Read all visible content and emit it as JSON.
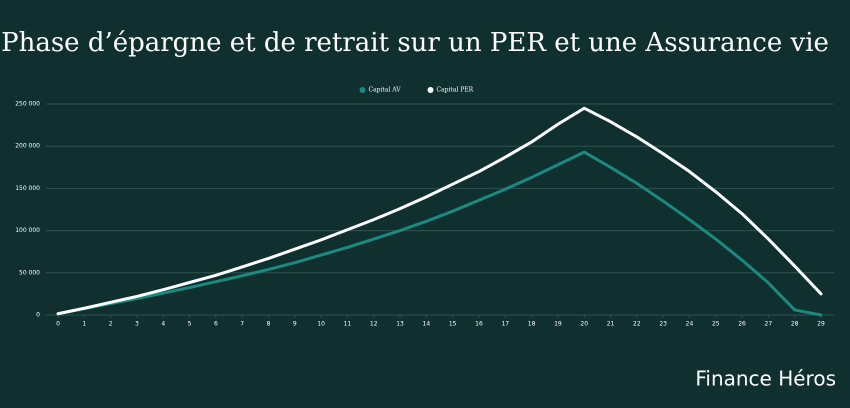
{
  "chart_data": {
    "type": "line",
    "title": "Phase d’épargne et de retrait sur un PER et une Assurance vie",
    "brand": "Finance Héros",
    "x": [
      0,
      1,
      2,
      3,
      4,
      5,
      6,
      7,
      8,
      9,
      10,
      11,
      12,
      13,
      14,
      15,
      16,
      17,
      18,
      19,
      20,
      21,
      22,
      23,
      24,
      25,
      26,
      27,
      28,
      29
    ],
    "xlim": [
      0,
      29
    ],
    "xticks": [
      0,
      1,
      2,
      3,
      4,
      5,
      6,
      7,
      8,
      9,
      10,
      11,
      12,
      13,
      14,
      15,
      16,
      17,
      18,
      19,
      20,
      21,
      22,
      23,
      24,
      25,
      26,
      27,
      28,
      29
    ],
    "ylim": [
      0,
      250000
    ],
    "yticks": [
      0,
      {
        "value": 50000,
        "label": "50 000"
      },
      {
        "value": 100000,
        "label": "100 000"
      },
      {
        "value": 150000,
        "label": "150 000"
      },
      {
        "value": 200000,
        "label": "200 000"
      },
      {
        "value": 250000,
        "label": "250 000"
      }
    ],
    "grid": true,
    "legend": "top",
    "series": [
      {
        "name": "Capital AV",
        "color": "#1a8a80",
        "values": [
          1500,
          7500,
          13500,
          19500,
          26000,
          32500,
          39500,
          46500,
          54000,
          62000,
          71000,
          80000,
          90000,
          100000,
          111000,
          123000,
          136000,
          149000,
          163000,
          178000,
          193000,
          175000,
          156000,
          135000,
          113000,
          90000,
          65000,
          38000,
          6000,
          0
        ]
      },
      {
        "name": "Capital PER",
        "color": "#ffffff",
        "values": [
          1500,
          8000,
          15000,
          22000,
          30000,
          38500,
          47000,
          57000,
          67000,
          78000,
          89000,
          101000,
          113000,
          126000,
          140000,
          155000,
          170000,
          187000,
          205000,
          226000,
          245000,
          229000,
          211000,
          191000,
          170000,
          146000,
          120000,
          90000,
          58000,
          25000
        ]
      }
    ]
  }
}
